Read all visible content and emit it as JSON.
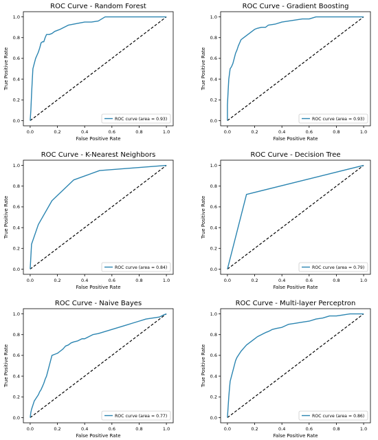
{
  "figure": {
    "line_color": "#2a84b0",
    "diagonal_color": "#000000"
  },
  "chart_data": [
    {
      "type": "line",
      "title": "ROC Curve - Random Forest",
      "xlabel": "False Positive Rate",
      "ylabel": "True Positive Rate",
      "xlim": [
        0,
        1
      ],
      "ylim": [
        0,
        1
      ],
      "xticks": [
        "0.0",
        "0.2",
        "0.4",
        "0.6",
        "0.8",
        "1.0"
      ],
      "yticks": [
        "0.0",
        "0.2",
        "0.4",
        "0.6",
        "0.8",
        "1.0"
      ],
      "legend": "ROC curve (area = 0.93)",
      "legend_position": "lower-right",
      "series": [
        {
          "x": [
            0,
            0.005,
            0.01,
            0.015,
            0.02,
            0.03,
            0.04,
            0.05,
            0.06,
            0.07,
            0.08,
            0.09,
            0.1,
            0.11,
            0.12,
            0.14,
            0.16,
            0.18,
            0.2,
            0.22,
            0.25,
            0.28,
            0.32,
            0.36,
            0.4,
            0.45,
            0.5,
            0.55,
            0.6,
            0.7,
            0.8,
            0.9,
            1.0
          ],
          "y": [
            0,
            0.1,
            0.25,
            0.38,
            0.5,
            0.55,
            0.6,
            0.63,
            0.66,
            0.7,
            0.75,
            0.76,
            0.76,
            0.8,
            0.83,
            0.83,
            0.84,
            0.86,
            0.87,
            0.88,
            0.9,
            0.92,
            0.93,
            0.94,
            0.95,
            0.95,
            0.96,
            1.0,
            1.0,
            1.0,
            1.0,
            1.0,
            1.0
          ]
        }
      ],
      "diagonal": {
        "x": [
          0,
          1
        ],
        "y": [
          0,
          1
        ]
      }
    },
    {
      "type": "line",
      "title": "ROC Curve - Gradient Boosting",
      "xlabel": "False Positive Rate",
      "ylabel": "True Positive Rate",
      "xlim": [
        0,
        1
      ],
      "ylim": [
        0,
        1
      ],
      "xticks": [
        "0.0",
        "0.2",
        "0.4",
        "0.6",
        "0.8",
        "1.0"
      ],
      "yticks": [
        "0.0",
        "0.2",
        "0.4",
        "0.6",
        "0.8",
        "1.0"
      ],
      "legend": "ROC curve (area = 0.93)",
      "legend_position": "lower-right",
      "series": [
        {
          "x": [
            0,
            0,
            0.005,
            0.01,
            0.015,
            0.02,
            0.03,
            0.04,
            0.05,
            0.06,
            0.07,
            0.08,
            0.09,
            0.1,
            0.12,
            0.14,
            0.16,
            0.18,
            0.2,
            0.22,
            0.25,
            0.28,
            0.3,
            0.35,
            0.4,
            0.45,
            0.5,
            0.55,
            0.6,
            0.65,
            0.7,
            0.8,
            0.9,
            1.0
          ],
          "y": [
            0,
            0.15,
            0.28,
            0.4,
            0.45,
            0.5,
            0.52,
            0.55,
            0.6,
            0.65,
            0.68,
            0.72,
            0.75,
            0.78,
            0.8,
            0.82,
            0.84,
            0.86,
            0.88,
            0.89,
            0.9,
            0.9,
            0.92,
            0.93,
            0.95,
            0.96,
            0.97,
            0.98,
            0.98,
            1.0,
            1.0,
            1.0,
            1.0,
            1.0
          ]
        }
      ],
      "diagonal": {
        "x": [
          0,
          1
        ],
        "y": [
          0,
          1
        ]
      }
    },
    {
      "type": "line",
      "title": "ROC Curve - K-Nearest Neighbors",
      "xlabel": "False Positive Rate",
      "ylabel": "True Positive Rate",
      "xlim": [
        0,
        1
      ],
      "ylim": [
        0,
        1
      ],
      "xticks": [
        "0.0",
        "0.2",
        "0.4",
        "0.6",
        "0.8",
        "1.0"
      ],
      "yticks": [
        "0.0",
        "0.2",
        "0.4",
        "0.6",
        "0.8",
        "1.0"
      ],
      "legend": "ROC curve (area = 0.84)",
      "legend_position": "lower-right",
      "series": [
        {
          "x": [
            0,
            0.01,
            0.06,
            0.16,
            0.32,
            0.51,
            1.0
          ],
          "y": [
            0,
            0.24,
            0.43,
            0.66,
            0.86,
            0.95,
            1.0
          ]
        }
      ],
      "diagonal": {
        "x": [
          0,
          1
        ],
        "y": [
          0,
          1
        ]
      }
    },
    {
      "type": "line",
      "title": "ROC Curve - Decision Tree",
      "xlabel": "False Positive Rate",
      "ylabel": "True Positive Rate",
      "xlim": [
        0,
        1
      ],
      "ylim": [
        0,
        1
      ],
      "xticks": [
        "0.0",
        "0.2",
        "0.4",
        "0.6",
        "0.8",
        "1.0"
      ],
      "yticks": [
        "0.0",
        "0.2",
        "0.4",
        "0.6",
        "0.8",
        "1.0"
      ],
      "legend": "ROC curve (area = 0.79)",
      "legend_position": "lower-right",
      "series": [
        {
          "x": [
            0,
            0.14,
            1.0
          ],
          "y": [
            0,
            0.72,
            1.0
          ]
        }
      ],
      "diagonal": {
        "x": [
          0,
          1
        ],
        "y": [
          0,
          1
        ]
      }
    },
    {
      "type": "line",
      "title": "ROC Curve - Naive Bayes",
      "xlabel": "False Positive Rate",
      "ylabel": "True Positive Rate",
      "xlim": [
        0,
        1
      ],
      "ylim": [
        0,
        1
      ],
      "xticks": [
        "0.0",
        "0.2",
        "0.4",
        "0.6",
        "0.8",
        "1.0"
      ],
      "yticks": [
        "0.0",
        "0.2",
        "0.4",
        "0.6",
        "0.8",
        "1.0"
      ],
      "legend": "ROC curve (area = 0.77)",
      "legend_position": "lower-right",
      "series": [
        {
          "x": [
            0,
            0.005,
            0.01,
            0.02,
            0.03,
            0.04,
            0.05,
            0.06,
            0.07,
            0.08,
            0.09,
            0.1,
            0.11,
            0.12,
            0.13,
            0.14,
            0.15,
            0.16,
            0.18,
            0.2,
            0.22,
            0.24,
            0.26,
            0.28,
            0.3,
            0.32,
            0.35,
            0.38,
            0.4,
            0.43,
            0.46,
            0.5,
            0.55,
            0.6,
            0.65,
            0.7,
            0.75,
            0.8,
            0.85,
            0.9,
            0.95,
            0.98,
            1.0
          ],
          "y": [
            0,
            0.05,
            0.08,
            0.12,
            0.16,
            0.18,
            0.2,
            0.22,
            0.25,
            0.27,
            0.3,
            0.33,
            0.37,
            0.4,
            0.45,
            0.5,
            0.55,
            0.6,
            0.61,
            0.62,
            0.64,
            0.66,
            0.69,
            0.7,
            0.72,
            0.73,
            0.74,
            0.76,
            0.76,
            0.78,
            0.8,
            0.81,
            0.83,
            0.85,
            0.87,
            0.89,
            0.91,
            0.93,
            0.95,
            0.96,
            0.97,
            0.99,
            1.0
          ]
        }
      ],
      "diagonal": {
        "x": [
          0,
          1
        ],
        "y": [
          0,
          1
        ]
      }
    },
    {
      "type": "line",
      "title": "ROC Curve - Multi-layer Perceptron",
      "xlabel": "False Positive Rate",
      "ylabel": "True Positive Rate",
      "xlim": [
        0,
        1
      ],
      "ylim": [
        0,
        1
      ],
      "xticks": [
        "0.0",
        "0.2",
        "0.4",
        "0.6",
        "0.8",
        "1.0"
      ],
      "yticks": [
        "0.0",
        "0.2",
        "0.4",
        "0.6",
        "0.8",
        "1.0"
      ],
      "legend": "ROC curve (area = 0.86)",
      "legend_position": "lower-right",
      "series": [
        {
          "x": [
            0,
            0.005,
            0.01,
            0.015,
            0.02,
            0.03,
            0.04,
            0.05,
            0.06,
            0.07,
            0.08,
            0.1,
            0.12,
            0.14,
            0.16,
            0.18,
            0.2,
            0.22,
            0.25,
            0.28,
            0.3,
            0.33,
            0.36,
            0.4,
            0.45,
            0.5,
            0.55,
            0.6,
            0.65,
            0.7,
            0.75,
            0.8,
            0.85,
            0.9,
            1.0
          ],
          "y": [
            0,
            0.1,
            0.2,
            0.28,
            0.35,
            0.4,
            0.45,
            0.5,
            0.55,
            0.58,
            0.6,
            0.64,
            0.67,
            0.7,
            0.72,
            0.74,
            0.76,
            0.78,
            0.8,
            0.82,
            0.83,
            0.85,
            0.86,
            0.87,
            0.9,
            0.91,
            0.92,
            0.93,
            0.95,
            0.96,
            0.98,
            0.98,
            0.99,
            1.0,
            1.0
          ]
        }
      ],
      "diagonal": {
        "x": [
          0,
          1
        ],
        "y": [
          0,
          1
        ]
      }
    }
  ]
}
